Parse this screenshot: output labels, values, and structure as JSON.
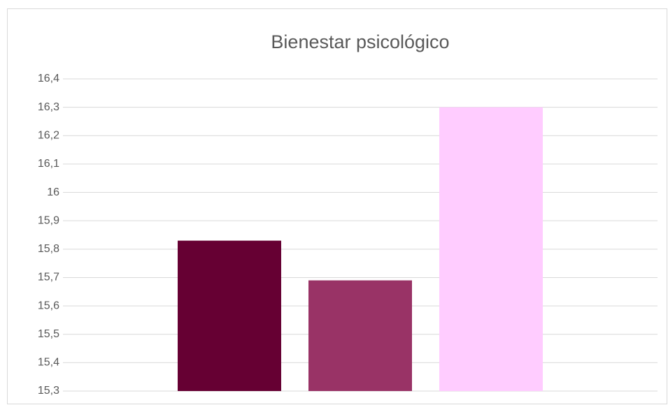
{
  "chart_data": {
    "type": "bar",
    "title": "Bienestar psicológico",
    "values": [
      15.83,
      15.69,
      16.3
    ],
    "colors": [
      "#660033",
      "#993366",
      "#ffccff"
    ],
    "ylim": [
      15.3,
      16.4
    ],
    "yticks": [
      {
        "value": 15.3,
        "label": "15,3"
      },
      {
        "value": 15.4,
        "label": "15,4"
      },
      {
        "value": 15.5,
        "label": "15,5"
      },
      {
        "value": 15.6,
        "label": "15,6"
      },
      {
        "value": 15.7,
        "label": "15,7"
      },
      {
        "value": 15.8,
        "label": "15,8"
      },
      {
        "value": 15.9,
        "label": "15,9"
      },
      {
        "value": 16,
        "label": "16"
      },
      {
        "value": 16.1,
        "label": "16,1"
      },
      {
        "value": 16.2,
        "label": "16,2"
      },
      {
        "value": 16.3,
        "label": "16,3"
      },
      {
        "value": 16.4,
        "label": "16,4"
      }
    ],
    "grid": true
  }
}
